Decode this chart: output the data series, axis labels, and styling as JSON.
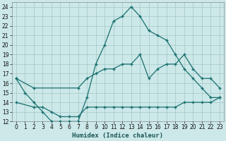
{
  "title": "",
  "xlabel": "Humidex (Indice chaleur)",
  "bg_color": "#cce8e8",
  "grid_color": "#aacccc",
  "line_color": "#1a7070",
  "xlim": [
    -0.5,
    23.5
  ],
  "ylim": [
    12,
    24.5
  ],
  "yticks": [
    12,
    13,
    14,
    15,
    16,
    17,
    18,
    19,
    20,
    21,
    22,
    23,
    24
  ],
  "xticks": [
    0,
    1,
    2,
    3,
    4,
    5,
    6,
    7,
    8,
    9,
    10,
    11,
    12,
    13,
    14,
    15,
    16,
    17,
    18,
    19,
    20,
    21,
    22,
    23
  ],
  "line1_x": [
    0,
    1,
    2,
    3,
    4,
    5,
    6,
    7,
    8,
    9,
    10,
    11,
    12,
    13,
    14,
    15,
    16,
    17,
    18,
    19,
    20,
    21,
    22,
    23
  ],
  "line1_y": [
    16.5,
    15,
    14.0,
    13.0,
    12.0,
    12.0,
    12.0,
    12.0,
    14.5,
    18.0,
    20.0,
    22.5,
    23.0,
    24.0,
    23.0,
    21.5,
    21.0,
    20.5,
    19.0,
    17.5,
    16.5,
    15.5,
    14.5,
    14.5
  ],
  "line2_x": [
    0,
    2,
    7,
    8,
    9,
    10,
    11,
    12,
    13,
    14,
    15,
    16,
    17,
    18,
    19,
    20,
    21,
    22,
    23
  ],
  "line2_y": [
    16.5,
    15.5,
    15.5,
    16.5,
    17.0,
    17.5,
    17.5,
    18.0,
    18.0,
    19.0,
    16.5,
    17.5,
    18.0,
    18.0,
    19.0,
    17.5,
    16.5,
    16.5,
    15.5
  ],
  "line3_x": [
    0,
    2,
    3,
    4,
    5,
    6,
    7,
    8,
    9,
    10,
    11,
    12,
    13,
    14,
    15,
    16,
    17,
    18,
    19,
    20,
    21,
    22,
    23
  ],
  "line3_y": [
    14.0,
    13.5,
    13.5,
    13.0,
    12.5,
    12.5,
    12.5,
    13.5,
    13.5,
    13.5,
    13.5,
    13.5,
    13.5,
    13.5,
    13.5,
    13.5,
    13.5,
    13.5,
    14.0,
    14.0,
    14.0,
    14.0,
    14.5
  ]
}
